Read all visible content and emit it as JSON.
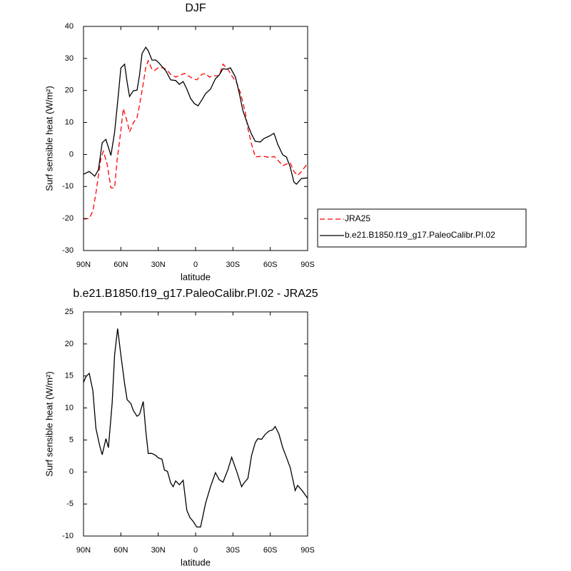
{
  "chart_data": [
    {
      "type": "line",
      "title": "DJF",
      "xlabel": "latitude",
      "ylabel": "Surf sensible heat (W/m²)",
      "xlim": [
        90,
        -90
      ],
      "xticks": [
        {
          "value": 90,
          "label": "90N"
        },
        {
          "value": 60,
          "label": "60N"
        },
        {
          "value": 30,
          "label": "30N"
        },
        0,
        {
          "value": -30,
          "label": "30S"
        },
        {
          "value": -60,
          "label": "60S"
        },
        {
          "value": -90,
          "label": "90S"
        }
      ],
      "ylim": [
        -30,
        40
      ],
      "yticks": [
        -30,
        -20,
        -10,
        0,
        10,
        20,
        30,
        40
      ],
      "legend": "right",
      "series": [
        {
          "name": "JRA25",
          "color": "#ff0000",
          "dash": true,
          "x": [
            90,
            85.4,
            82.5,
            80,
            76,
            74,
            71,
            68,
            65,
            63,
            60,
            58,
            55,
            53,
            50,
            47,
            45,
            42,
            40,
            38,
            35,
            33,
            30,
            26,
            23,
            20,
            16,
            13,
            9,
            6,
            2,
            -1,
            -5,
            -8,
            -11,
            -15,
            -19,
            -22,
            -26,
            -29,
            -33,
            -36,
            -40,
            -42,
            -45,
            -48,
            -52,
            -55,
            -60,
            -63,
            -66,
            -70,
            -73,
            -76,
            -79,
            -82,
            -85,
            -90
          ],
          "values": [
            -20.2,
            -20,
            -17.7,
            -12,
            -1.2,
            1,
            -3,
            -10.4,
            -10.4,
            -1.7,
            7.4,
            14.3,
            10.3,
            7,
            9.9,
            11.5,
            15.5,
            22.1,
            27.3,
            29.3,
            26.6,
            26.2,
            27.1,
            27.1,
            26.4,
            25,
            24.2,
            24.6,
            25.3,
            24.6,
            23.7,
            23.3,
            25,
            25.3,
            24.2,
            24.6,
            24.6,
            28.2,
            26.6,
            24.6,
            22.4,
            19.3,
            13,
            8.1,
            3.2,
            -0.8,
            -0.6,
            -0.6,
            -1,
            -0.6,
            -1.7,
            -3.5,
            -3,
            -2.6,
            -5.3,
            -6.6,
            -5.3,
            -2.8
          ]
        },
        {
          "name": "b.e21.B1850.f19_g17.PaleoCalibr.PI.02",
          "color": "#000000",
          "dash": false,
          "x": [
            90,
            85.4,
            81,
            78,
            75,
            72,
            68,
            65,
            62,
            60,
            57,
            55,
            53,
            50,
            47,
            45,
            43,
            40,
            38,
            35,
            32,
            30,
            27,
            24,
            20,
            16,
            13,
            10,
            7,
            4,
            1,
            -2,
            -5,
            -8,
            -12,
            -16,
            -19,
            -22,
            -25,
            -28,
            -32,
            -35,
            -38,
            -42,
            -45,
            -48,
            -52,
            -55,
            -59,
            -63,
            -66,
            -70,
            -73,
            -76,
            -79,
            -81,
            -85,
            -90
          ],
          "values": [
            -6.2,
            -5.3,
            -6.8,
            -4.8,
            3.7,
            4.7,
            -0.3,
            7,
            18.6,
            27,
            28.2,
            22.6,
            18.1,
            19.9,
            20.1,
            24.8,
            31.5,
            33.5,
            32.4,
            29.5,
            29.5,
            28.8,
            27.5,
            26.2,
            23.3,
            23.1,
            21.9,
            22.8,
            20.4,
            17.5,
            15.9,
            15.2,
            17,
            19,
            20.4,
            23.7,
            24.8,
            26.8,
            26.6,
            27.1,
            24.2,
            19.3,
            13.7,
            9.2,
            6.3,
            4.1,
            3.9,
            5,
            5.7,
            6.6,
            3.2,
            -0.1,
            -0.8,
            -3.9,
            -8.6,
            -9.3,
            -7.5,
            -7.3
          ]
        }
      ]
    },
    {
      "type": "line",
      "title": "b.e21.B1850.f19_g17.PaleoCalibr.PI.02 - JRA25",
      "xlabel": "latitude",
      "ylabel": "Surf sensible heat (W/m²)",
      "xlim": [
        90,
        -90
      ],
      "xticks": [
        {
          "value": 90,
          "label": "90N"
        },
        {
          "value": 60,
          "label": "60N"
        },
        {
          "value": 30,
          "label": "30N"
        },
        0,
        {
          "value": -30,
          "label": "30S"
        },
        {
          "value": -60,
          "label": "60S"
        },
        {
          "value": -90,
          "label": "90S"
        }
      ],
      "ylim": [
        -10,
        25
      ],
      "yticks": [
        -10,
        -5,
        0,
        5,
        10,
        15,
        20,
        25
      ],
      "series": [
        {
          "color": "#000000",
          "dash": false,
          "x": [
            90,
            88,
            85.4,
            82.5,
            80,
            77,
            75,
            72,
            70,
            67,
            65,
            62.6,
            60,
            57,
            55,
            52,
            50,
            47,
            45,
            42,
            40,
            38,
            35,
            32,
            30,
            27,
            25,
            22.6,
            20,
            18,
            16,
            13,
            10,
            7,
            4.5,
            2,
            -1,
            -4,
            -8,
            -12,
            -16,
            -19,
            -22,
            -26,
            -29,
            -33,
            -37,
            -39,
            -42,
            -45,
            -48,
            -50,
            -53,
            -56,
            -59,
            -62,
            -64,
            -67,
            -70,
            -72,
            -76,
            -80,
            -82,
            -86,
            -90
          ],
          "values": [
            14,
            14.9,
            15.4,
            12.7,
            6.8,
            4.1,
            2.7,
            5.2,
            3.8,
            10.7,
            18.3,
            22.4,
            18.3,
            13.8,
            11.3,
            10.7,
            9.6,
            8.7,
            9,
            11,
            6.5,
            2.9,
            2.9,
            2.6,
            2.2,
            2,
            0.3,
            0.1,
            -1.7,
            -2.3,
            -1.4,
            -2,
            -1.3,
            -6,
            -7.1,
            -7.7,
            -8.6,
            -8.6,
            -4.9,
            -2.3,
            -0.1,
            -1.2,
            -1.6,
            0.4,
            2.3,
            0.1,
            -2.3,
            -1.7,
            -1,
            2.6,
            4.6,
            5.2,
            5.1,
            5.9,
            6.4,
            6.6,
            7.1,
            5.9,
            3.8,
            2.8,
            0.7,
            -2.9,
            -2.1,
            -3,
            -4.1
          ]
        }
      ]
    }
  ]
}
